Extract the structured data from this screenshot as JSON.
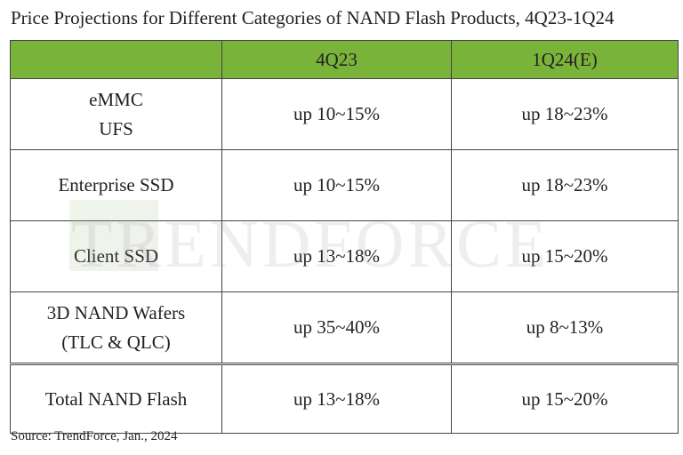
{
  "header": {
    "title": "Price Projections for Different Categories of NAND Flash Products, 4Q23-1Q24"
  },
  "table": {
    "columns": [
      "",
      "4Q23",
      "1Q24(E)"
    ],
    "rows": [
      [
        "eMMC\nUFS",
        "up 10~15%",
        "up 18~23%"
      ],
      [
        "Enterprise SSD",
        "up 10~15%",
        "up 18~23%"
      ],
      [
        "Client SSD",
        "up 13~18%",
        "up 15~20%"
      ],
      [
        "3D NAND Wafers\n(TLC & QLC)",
        "up 35~40%",
        "up 8~13%"
      ],
      [
        "Total NAND Flash",
        "up 13~18%",
        "up 15~20%"
      ]
    ]
  },
  "watermark": "TRENDFORCE",
  "footer": {
    "source": "Source: TrendForce, Jan., 2024"
  }
}
